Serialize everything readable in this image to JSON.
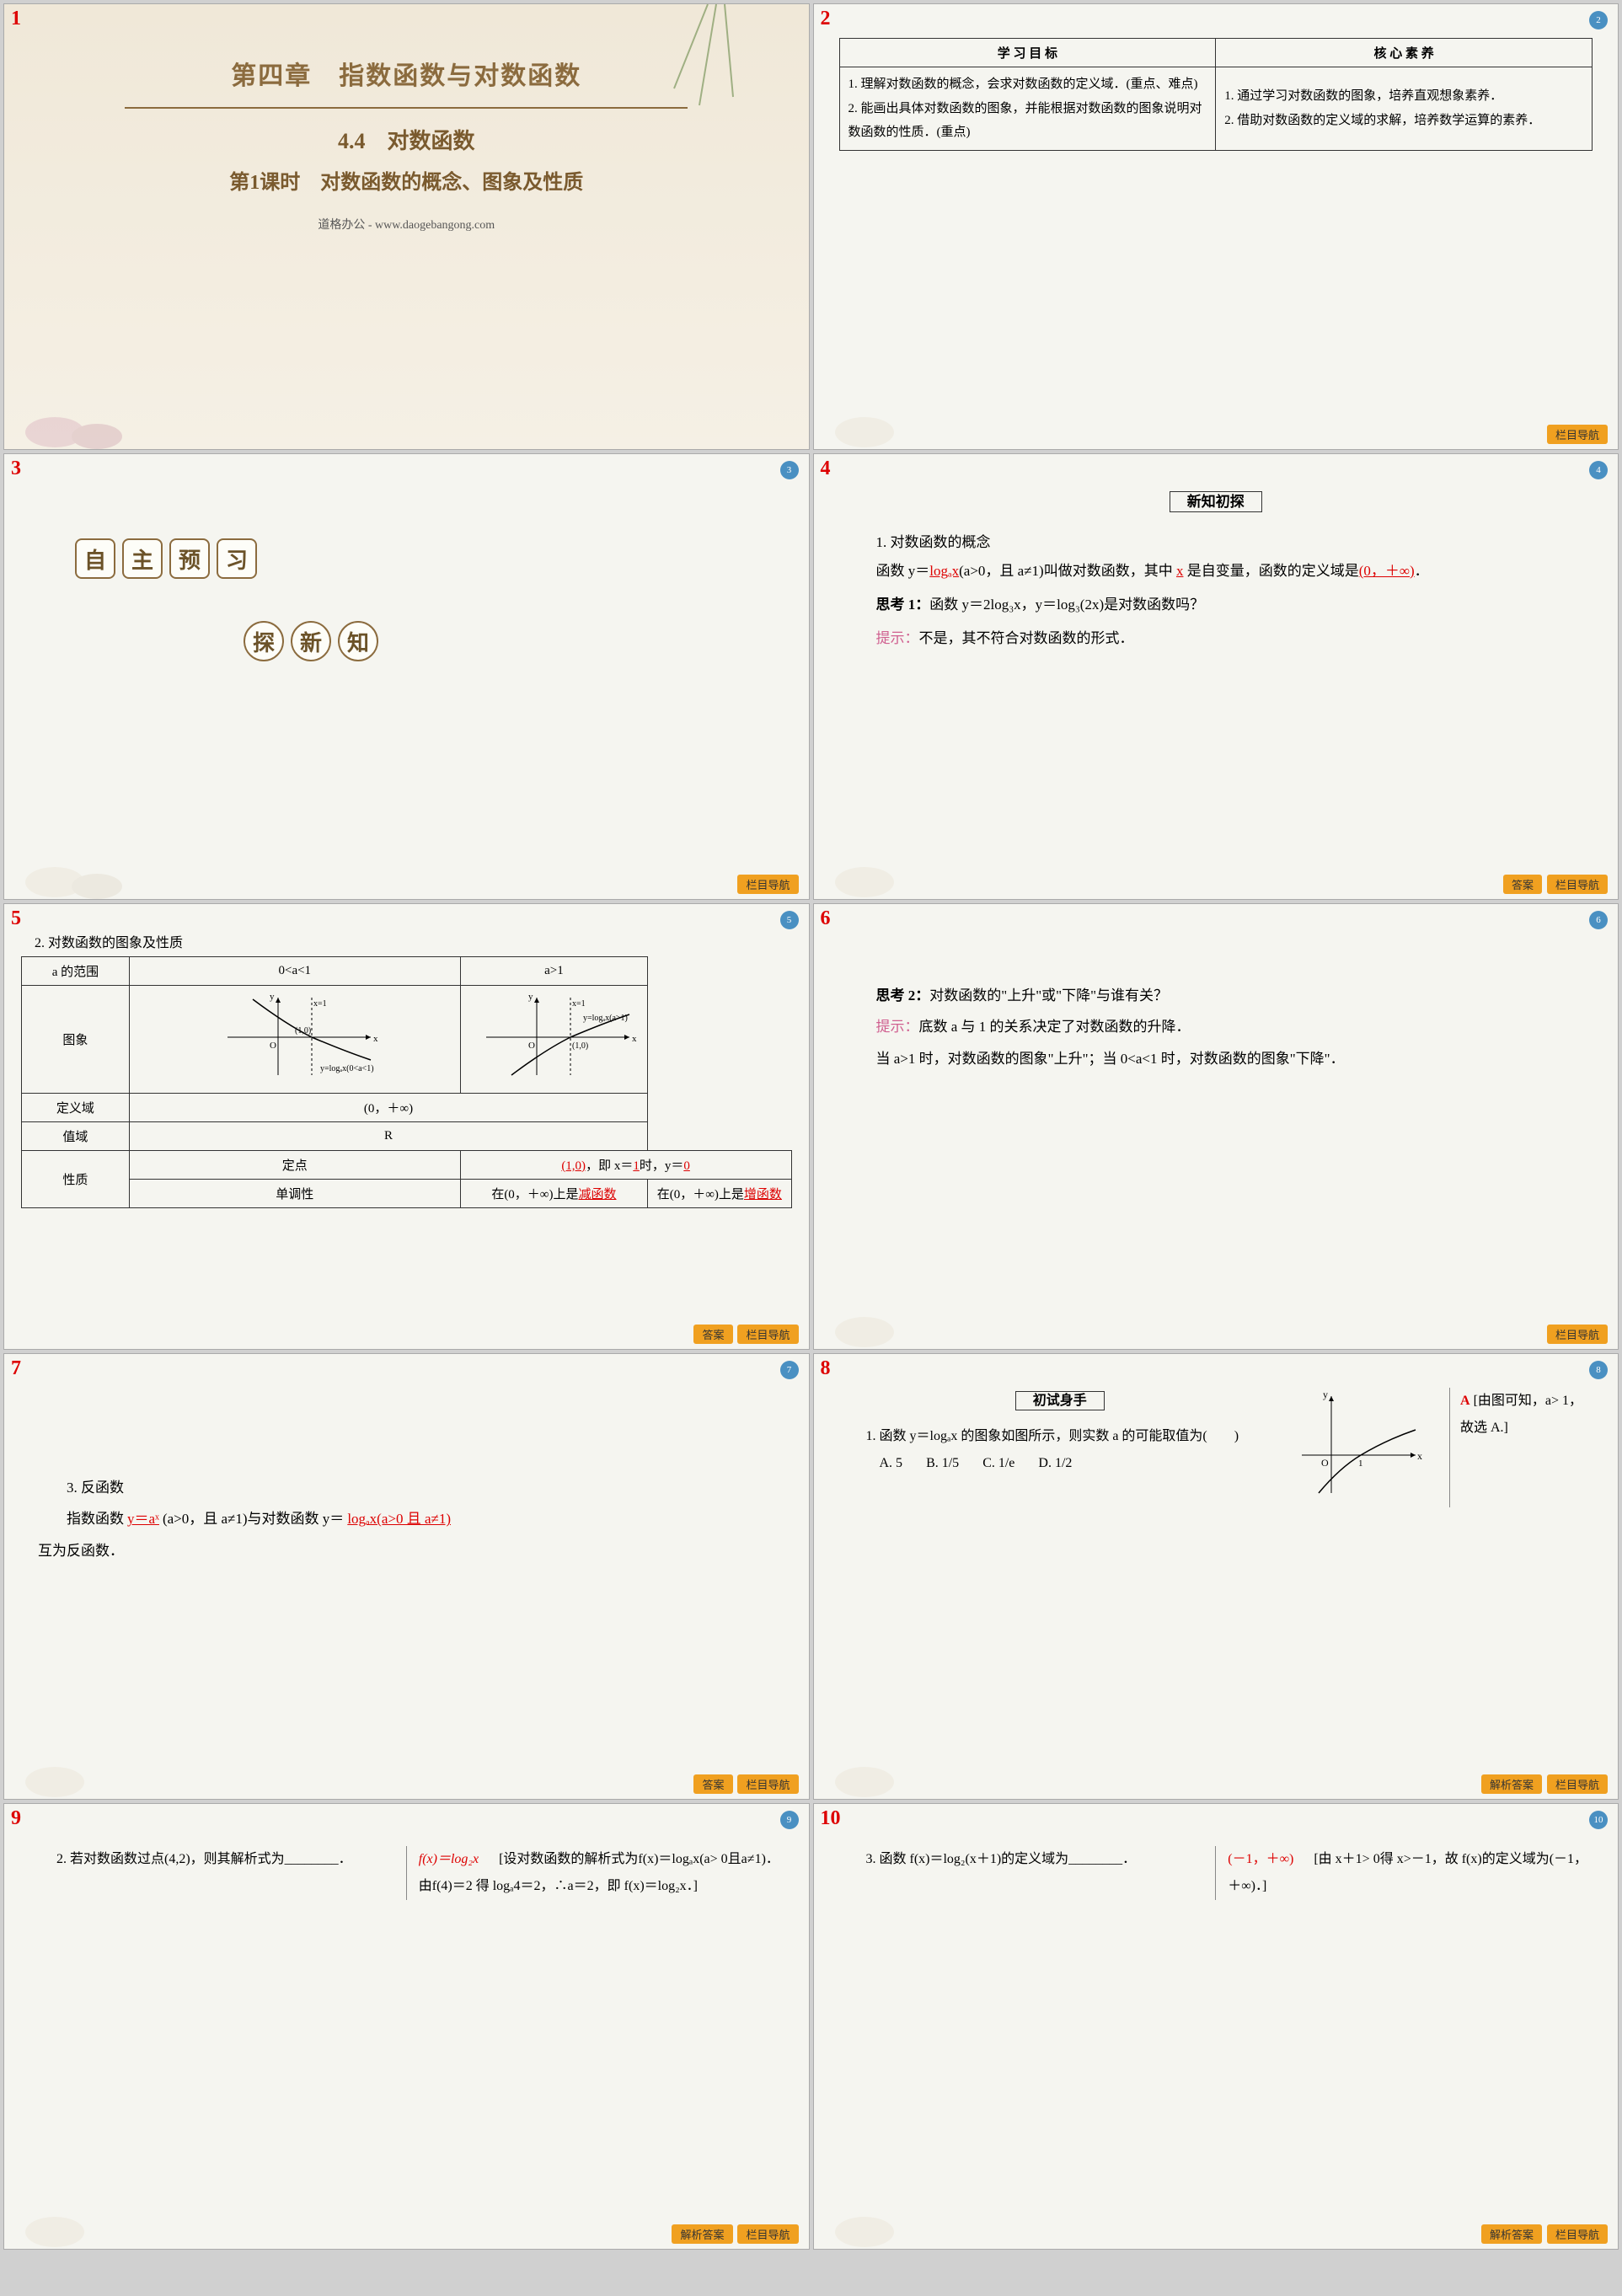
{
  "slide1": {
    "chapter": "第四章　指数函数与对数函数",
    "section": "4.4　对数函数",
    "lesson": "第1课时　对数函数的概念、图象及性质",
    "watermark": "道格办公 - www.daogebangong.com",
    "colors": {
      "title": "#8b6b3e",
      "bg": "#f0e8d8"
    }
  },
  "slide2": {
    "num": "2",
    "th1": "学 习 目 标",
    "th2": "核 心 素 养",
    "goal": "1. 理解对数函数的概念，会求对数函数的定义域．(重点、难点)\n2. 能画出具体对数函数的图象，并能根据对数函数的图象说明对数函数的性质．(重点)",
    "core": "1. 通过学习对数函数的图象，培养直观想象素养．\n2. 借助对数函数的定义域的求解，培养数学运算的素养．",
    "footer": "栏目导航"
  },
  "slide3": {
    "num": "3",
    "chars1": [
      "自",
      "主",
      "预",
      "习"
    ],
    "chars2": [
      "探",
      "新",
      "知"
    ],
    "footer": "栏目导航"
  },
  "slide4": {
    "num": "4",
    "heading": "新知初探",
    "title": "1. 对数函数的概念",
    "line1a": "函数 y＝",
    "fill1": "logₐx",
    "line1b": "(a>0，且 a≠1)叫做对数函数，其中",
    "fill2": "x",
    "line1c": "是自变量，函数的定义域是",
    "fill3": "(0，＋∞)",
    "line1d": "．",
    "think_label": "思考 1：",
    "think": "函数 y＝2log₃x，y＝log₃(2x)是对数函数吗？",
    "hint_label": "提示：",
    "hint": "不是，其不符合对数函数的形式．",
    "footer1": "答案",
    "footer2": "栏目导航"
  },
  "slide5": {
    "num": "5",
    "title": "2. 对数函数的图象及性质",
    "row_a": "a 的范围",
    "col1": "0<a<1",
    "col2": "a>1",
    "row_img": "图象",
    "curve_label1": "y=logₐx(0<a<1)",
    "curve_label2": "y=logₐx(a>1)",
    "row_domain": "定义域",
    "domain_val": "(0，＋∞)",
    "row_range": "值域",
    "range_val": "R",
    "row_prop": "性质",
    "row_fixed": "定点",
    "fixed_fill1": "(1,0)",
    "fixed_mid": "，即 x＝",
    "fixed_fill2": "1",
    "fixed_mid2": "时，y＝",
    "fixed_fill3": "0",
    "row_mono": "单调性",
    "mono1a": "在(0，＋∞)上是",
    "mono1b": "减函数",
    "mono2a": "在(0，＋∞)上是",
    "mono2b": "增函数",
    "footer1": "答案",
    "footer2": "栏目导航"
  },
  "slide6": {
    "num": "6",
    "think_label": "思考 2：",
    "think": "对数函数的\"上升\"或\"下降\"与谁有关？",
    "hint_label": "提示：",
    "hint": "底数 a 与 1 的关系决定了对数函数的升降．",
    "body": "当 a>1 时，对数函数的图象\"上升\"；当 0<a<1 时，对数函数的图象\"下降\"．",
    "footer": "栏目导航"
  },
  "slide7": {
    "num": "7",
    "title": "3. 反函数",
    "line_a": "指数函数",
    "fill1": "y＝aˣ",
    "line_b": "(a>0，且 a≠1)与对数函数 y＝",
    "fill2": "logₐx(a>0 且 a≠1)",
    "line_c": "互为反函数．",
    "footer1": "答案",
    "footer2": "栏目导航"
  },
  "slide8": {
    "num": "8",
    "heading": "初试身手",
    "q": "1. 函数 y＝logₐx 的图象如图所示，则实数 a 的可能取值为(　　)",
    "optA": "A. 5",
    "optB": "B. 1/5",
    "optC": "C. 1/e",
    "optD": "D. 1/2",
    "ans_letter": "A",
    "ans_text": "[由图可知，a> 1，故选 A.]",
    "footer1": "解析答案",
    "footer2": "栏目导航"
  },
  "slide9": {
    "num": "9",
    "q": "2. 若对数函数过点(4,2)，则其解析式为________．",
    "ans_main": "f(x)＝log₂x",
    "ans_text": "[设对数函数的解析式为f(x)＝logₐx(a> 0且a≠1)．由f(4)＝2 得 logₐ4＝2，∴a＝2，即 f(x)＝log₂x．]",
    "footer1": "解析答案",
    "footer2": "栏目导航"
  },
  "slide10": {
    "num": "10",
    "q": "3. 函数 f(x)＝log₂(x＋1)的定义域为________．",
    "ans_main": "(－1，＋∞)",
    "ans_text": "[由 x＋1> 0得 x>－1，故 f(x)的定义域为(－1，＋∞)．]",
    "footer1": "解析答案",
    "footer2": "栏目导航"
  }
}
